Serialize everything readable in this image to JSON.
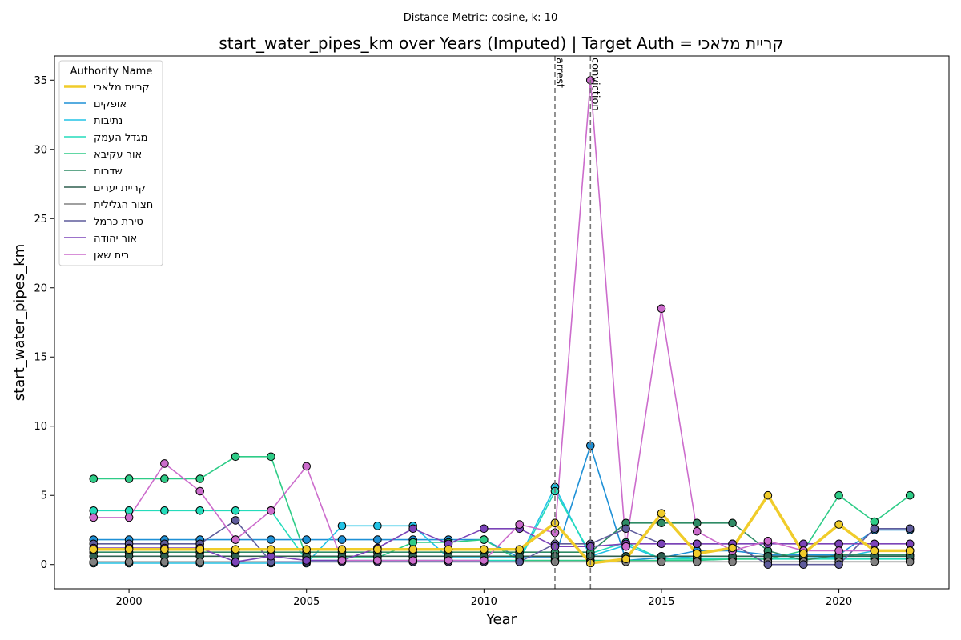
{
  "chart_data": {
    "type": "line",
    "subtitle": "Distance Metric: cosine, k: 10",
    "title": "start_water_pipes_km over Years (Imputed) | Target Auth = קריית מלאכי",
    "xlabel": "Year",
    "ylabel": "start_water_pipes_km",
    "xlim": [
      1997.9,
      2023.1
    ],
    "ylim": [
      -1.75,
      36.75
    ],
    "x_ticks": [
      2000,
      2005,
      2010,
      2015,
      2020
    ],
    "y_ticks": [
      0,
      5,
      10,
      15,
      20,
      25,
      30,
      35
    ],
    "grid": false,
    "legend": {
      "title": "Authority Name",
      "position": "top-left"
    },
    "vlines": [
      {
        "x": 2012,
        "label": "arrest"
      },
      {
        "x": 2013,
        "label": "conviction"
      }
    ],
    "x": [
      1999,
      2000,
      2001,
      2002,
      2003,
      2004,
      2005,
      2006,
      2007,
      2008,
      2009,
      2010,
      2011,
      2012,
      2013,
      2014,
      2015,
      2016,
      2017,
      2018,
      2019,
      2020,
      2021,
      2022
    ],
    "series": [
      {
        "name": "קריית מלאכי",
        "color": "#f0cc2a",
        "target": true,
        "values": [
          1.1,
          1.1,
          1.1,
          1.1,
          1.1,
          1.1,
          1.1,
          1.1,
          1.1,
          1.1,
          1.1,
          1.1,
          1.1,
          3.0,
          0.1,
          0.4,
          3.7,
          0.8,
          1.2,
          5.0,
          0.8,
          2.9,
          1.0,
          1.0
        ]
      },
      {
        "name": "אופקים",
        "color": "#1e90d6",
        "values": [
          1.8,
          1.8,
          1.8,
          1.8,
          1.8,
          1.8,
          1.8,
          1.8,
          1.8,
          1.8,
          1.8,
          1.8,
          0.5,
          0.5,
          8.6,
          0.3,
          0.5,
          1.0,
          1.0,
          0.7,
          0.7,
          0.7,
          2.5,
          2.5
        ]
      },
      {
        "name": "נתיבות",
        "color": "#22c3e6",
        "values": [
          0.1,
          0.1,
          0.1,
          0.1,
          0.1,
          0.1,
          0.1,
          2.8,
          2.8,
          2.8,
          0.5,
          0.5,
          0.5,
          5.6,
          0.6,
          1.4,
          0.4,
          0.6,
          0.6,
          0.6,
          0.6,
          0.5,
          1.0,
          1.0
        ]
      },
      {
        "name": "מגדל העמק",
        "color": "#24dcbb",
        "values": [
          3.9,
          3.9,
          3.9,
          3.9,
          3.9,
          3.9,
          0.3,
          0.3,
          0.3,
          0.3,
          0.3,
          0.3,
          0.3,
          5.3,
          0.8,
          1.6,
          0.4,
          0.4,
          0.4,
          0.4,
          0.4,
          0.4,
          0.4,
          0.4
        ]
      },
      {
        "name": "אור עקיבא",
        "color": "#2ecc87",
        "values": [
          6.2,
          6.2,
          6.2,
          6.2,
          7.8,
          7.8,
          0.5,
          0.5,
          0.5,
          1.6,
          1.6,
          1.8,
          0.3,
          0.3,
          0.3,
          0.3,
          0.3,
          0.3,
          0.4,
          0.4,
          1.0,
          5.0,
          3.1,
          5.0
        ]
      },
      {
        "name": "שדרות",
        "color": "#2e8b65",
        "values": [
          0.9,
          0.9,
          0.9,
          0.9,
          0.9,
          0.9,
          0.9,
          0.9,
          0.9,
          0.9,
          0.9,
          0.9,
          0.9,
          0.9,
          0.9,
          3.0,
          3.0,
          3.0,
          3.0,
          1.0,
          0.3,
          0.7,
          0.7,
          0.7
        ]
      },
      {
        "name": "קריית יערים",
        "color": "#2e5f4f",
        "values": [
          0.6,
          0.6,
          0.6,
          0.6,
          0.6,
          0.6,
          0.6,
          0.6,
          0.6,
          0.6,
          0.6,
          0.6,
          0.6,
          0.6,
          0.6,
          0.6,
          0.6,
          0.6,
          0.6,
          0.6,
          0.6,
          0.6,
          0.6,
          0.6
        ]
      },
      {
        "name": "חצור הגלילית",
        "color": "#808080",
        "values": [
          0.2,
          0.2,
          0.2,
          0.2,
          0.2,
          0.2,
          0.2,
          0.2,
          0.2,
          0.2,
          0.2,
          0.2,
          0.2,
          0.2,
          0.2,
          0.2,
          0.2,
          0.2,
          0.2,
          0.2,
          0.2,
          0.2,
          0.2,
          0.2
        ]
      },
      {
        "name": "טירת כרמל",
        "color": "#5f5c9c",
        "values": [
          1.5,
          1.5,
          1.5,
          1.5,
          3.2,
          0.2,
          0.2,
          0.2,
          0.2,
          0.2,
          0.2,
          0.2,
          0.2,
          1.5,
          1.5,
          2.6,
          1.5,
          1.5,
          1.5,
          0.0,
          0.0,
          0.0,
          2.6,
          2.6
        ]
      },
      {
        "name": "אור יהודה",
        "color": "#7b43b8",
        "values": [
          1.2,
          1.2,
          1.2,
          1.2,
          0.2,
          0.6,
          0.3,
          0.3,
          1.2,
          2.6,
          1.5,
          2.6,
          2.6,
          1.3,
          1.3,
          1.5,
          1.5,
          1.5,
          1.5,
          1.5,
          1.5,
          1.5,
          1.5,
          1.5
        ]
      },
      {
        "name": "בית שאן",
        "color": "#cc6ccc",
        "values": [
          3.4,
          3.4,
          7.3,
          5.3,
          1.8,
          3.9,
          7.1,
          0.3,
          0.3,
          0.3,
          0.3,
          0.3,
          2.9,
          2.3,
          35.0,
          1.3,
          18.5,
          2.4,
          1.0,
          1.7,
          1.0,
          1.0,
          1.0,
          1.0
        ]
      }
    ]
  }
}
